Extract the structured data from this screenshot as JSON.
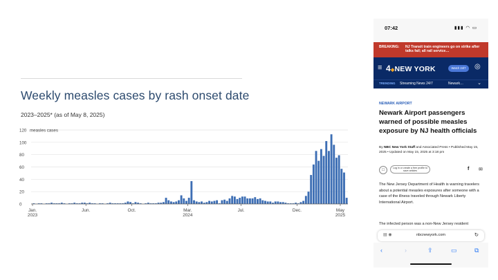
{
  "chart": {
    "title": "Weekly measles cases by rash onset date",
    "subtitle": "2023–2025* (as of May 8, 2025)"
  },
  "chart_data": {
    "type": "bar",
    "ylabel": "measles cases",
    "ylim": [
      0,
      120
    ],
    "yticks": [
      0,
      20,
      40,
      60,
      80,
      100,
      120
    ],
    "grid": true,
    "bar_color": "#3d6eb4",
    "x_tick_labels": [
      {
        "line1": "Jan.",
        "line2": "2023",
        "week": 0
      },
      {
        "line1": "Jun.",
        "line2": "",
        "week": 21
      },
      {
        "line1": "Oct.",
        "line2": "",
        "week": 39
      },
      {
        "line1": "Mar.",
        "line2": "2024",
        "week": 61
      },
      {
        "line1": "Jul.",
        "line2": "",
        "week": 82
      },
      {
        "line1": "Dec.",
        "line2": "",
        "week": 104
      },
      {
        "line1": "May",
        "line2": "2025",
        "week": 121
      }
    ],
    "values": [
      1,
      0,
      1,
      1,
      0,
      1,
      1,
      2,
      1,
      1,
      1,
      2,
      1,
      0,
      1,
      1,
      2,
      1,
      1,
      2,
      2,
      1,
      2,
      1,
      1,
      0,
      1,
      1,
      0,
      1,
      2,
      1,
      1,
      1,
      1,
      1,
      2,
      4,
      3,
      1,
      3,
      2,
      1,
      0,
      1,
      2,
      1,
      1,
      1,
      2,
      2,
      3,
      10,
      6,
      4,
      3,
      4,
      6,
      14,
      9,
      5,
      10,
      37,
      6,
      4,
      3,
      4,
      2,
      3,
      5,
      4,
      5,
      6,
      1,
      6,
      7,
      5,
      9,
      13,
      12,
      8,
      10,
      12,
      12,
      9,
      9,
      9,
      11,
      8,
      9,
      6,
      5,
      4,
      4,
      2,
      4,
      4,
      3,
      3,
      2,
      1,
      1,
      1,
      2,
      1,
      3,
      5,
      13,
      20,
      47,
      64,
      86,
      70,
      89,
      78,
      102,
      86,
      113,
      96,
      75,
      79,
      57,
      51,
      10
    ]
  },
  "phone": {
    "status_time": "07:42",
    "status_icons": "▮▮▮ ◠ ▭",
    "breaking_label": "BREAKING:",
    "breaking_text": "NJ Transit train engineers go on strike after talks fail; all rail service…",
    "logo_text": "NEW YORK",
    "logo_num": "4",
    "watch_button": "Watch 24/7",
    "trending_label": "TRENDING",
    "trending_item_1": "Streaming News 24/7",
    "trending_item_2": "Newark…",
    "article_section": "NEWARK AIRPORT",
    "article_headline": "Newark Airport passengers warned of possible measles exposure by NJ health officials",
    "byline_prefix": "By ",
    "byline_author": "NBC New York Staff",
    "byline_rest": " and Associated Press • Published May 15, 2025 • Updated on May 15, 2025 at 3:18 pm",
    "save_label": "Log in or create a free profile to save articles",
    "fb_icon": "f",
    "mail_icon": "✉",
    "body_paragraph_1": "The New Jersey Department of Health is warning travelers about a potential measles exposures after someone with a case of the illness traveled through Newark Liberty International Airport.",
    "body_paragraph_2": "The infected person was a non-New Jersey resident",
    "url": "nbcnewyork.com",
    "toolbar": {
      "back": "‹",
      "forward": "›",
      "share": "⇪",
      "bookmarks": "▭",
      "tabs": "⧉"
    }
  }
}
